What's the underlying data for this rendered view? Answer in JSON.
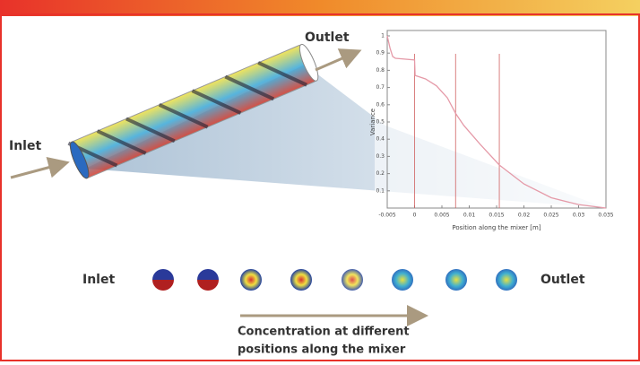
{
  "labels": {
    "outlet": "Outlet",
    "inlet": "Inlet"
  },
  "chart_data": {
    "type": "line",
    "x": [
      -0.005,
      -0.0045,
      -0.004,
      -0.0035,
      0,
      0.0001,
      0.002,
      0.004,
      0.006,
      0.0075,
      0.009,
      0.012,
      0.0155,
      0.02,
      0.025,
      0.03,
      0.035
    ],
    "series": [
      {
        "color": "#e59aa8",
        "values": [
          1,
          0.93,
          0.88,
          0.87,
          0.86,
          0.77,
          0.75,
          0.71,
          0.64,
          0.55,
          0.48,
          0.37,
          0.25,
          0.14,
          0.06,
          0.02,
          0
        ]
      }
    ],
    "vlines": [
      0,
      0.0075,
      0.0155
    ],
    "xlim": [
      -0.005,
      0.035
    ],
    "ylim": [
      0,
      1
    ],
    "xticks": [
      -0.005,
      0,
      0.005,
      0.01,
      0.015,
      0.02,
      0.025,
      0.03,
      0.035
    ],
    "yticks": [
      0.1,
      0.2,
      0.3,
      0.4,
      0.5,
      0.6,
      0.7,
      0.8,
      0.9,
      1
    ],
    "xlabel": "Position along the mixer [m]",
    "ylabel": "Variance"
  },
  "cross_sections": {
    "inlet": "Inlet",
    "outlet": "Outlet"
  },
  "caption": [
    "Concentration at different",
    "positions along the mixer"
  ]
}
